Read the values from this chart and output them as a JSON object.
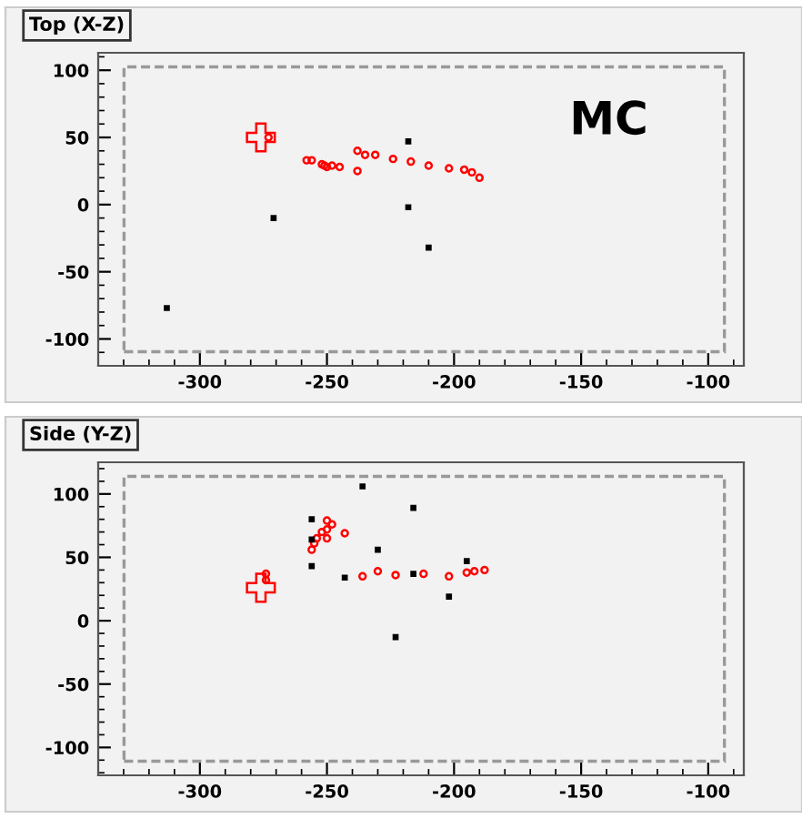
{
  "chart_data": [
    {
      "type": "scatter",
      "title": "Top (X-Z)",
      "annotations": [
        "MC"
      ],
      "xlim": [
        -340,
        -86
      ],
      "ylim": [
        -120,
        113
      ],
      "xticks": [
        -300,
        -250,
        -200,
        -150,
        -100
      ],
      "yticks": [
        -100,
        -50,
        0,
        50,
        100
      ],
      "grid": false,
      "legend": false,
      "series": [
        {
          "color": "#ff0000",
          "marker": "circle",
          "x": [
            -273,
            -258,
            -256,
            -252,
            -251,
            -250,
            -248,
            -245,
            -238,
            -238,
            -235,
            -231,
            -224,
            -217,
            -210,
            -202,
            -196,
            -193,
            -190
          ],
          "values": [
            50,
            33,
            33,
            30,
            29,
            28,
            29,
            28,
            40,
            25,
            37,
            37,
            34,
            32,
            29,
            27,
            26,
            24,
            20
          ]
        },
        {
          "color": "#000000",
          "marker": "square",
          "x": [
            -218,
            -218,
            -271,
            -210,
            -313
          ],
          "values": [
            47,
            -2,
            -10,
            -32,
            -77
          ]
        },
        {
          "color": "#ff0000",
          "marker": "cross",
          "x": [
            -276
          ],
          "values": [
            50
          ]
        }
      ]
    },
    {
      "type": "scatter",
      "title": "Side (Y-Z)",
      "xlim": [
        -340,
        -86
      ],
      "ylim": [
        -122,
        125
      ],
      "xticks": [
        -300,
        -250,
        -200,
        -150,
        -100
      ],
      "yticks": [
        -100,
        -50,
        0,
        50,
        100
      ],
      "grid": false,
      "legend": false,
      "series": [
        {
          "color": "#ff0000",
          "marker": "circle",
          "x": [
            -274,
            -274,
            -256,
            -255,
            -254,
            -252,
            -250,
            -248,
            -250,
            -250,
            -243,
            -236,
            -230,
            -223,
            -212,
            -202,
            -195,
            -192,
            -188
          ],
          "values": [
            37,
            32,
            56,
            61,
            65,
            70,
            72,
            76,
            79,
            65,
            69,
            35,
            39,
            36,
            37,
            35,
            38,
            39,
            40
          ]
        },
        {
          "color": "#000000",
          "marker": "square",
          "x": [
            -256,
            -256,
            -256,
            -236,
            -216,
            -230,
            -243,
            -216,
            -195,
            -202,
            -223
          ],
          "values": [
            80,
            64,
            43,
            106,
            89,
            56,
            34,
            37,
            47,
            19,
            -13
          ]
        },
        {
          "color": "#ff0000",
          "marker": "cross",
          "x": [
            -276
          ],
          "values": [
            26
          ]
        }
      ]
    }
  ]
}
